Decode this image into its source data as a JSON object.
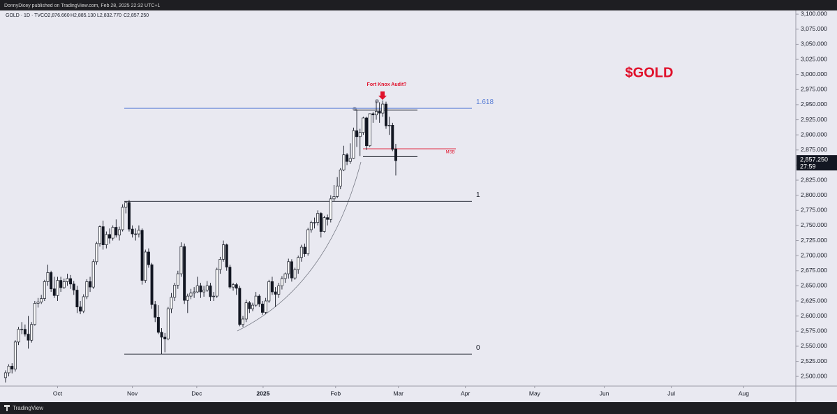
{
  "header": {
    "publisher": "DonnyDicey published on TradingView.com, Feb 28, 2025 22:32 UTC+1",
    "symbol": "GOLD · 1D · TVC",
    "open": "O2,876.660",
    "high": "H2,885.130",
    "low": "L2,832.770",
    "close": "C2,857.250"
  },
  "footer": {
    "brand": "TradingView"
  },
  "chart_data": {
    "type": "candlestick",
    "title": "$GOLD",
    "annotation": "Fort Knox Audit?",
    "up_color": "#ffffff",
    "down_color": "#131722",
    "ylim": [
      2484,
      3106
    ],
    "xlim": [
      -1.7,
      243
    ],
    "yticks": [
      {
        "value": 2500,
        "label": "2,500.000"
      },
      {
        "value": 2525,
        "label": "2,525.000"
      },
      {
        "value": 2550,
        "label": "2,550.000"
      },
      {
        "value": 2575,
        "label": "2,575.000"
      },
      {
        "value": 2600,
        "label": "2,600.000"
      },
      {
        "value": 2625,
        "label": "2,625.000"
      },
      {
        "value": 2650,
        "label": "2,650.000"
      },
      {
        "value": 2675,
        "label": "2,675.000"
      },
      {
        "value": 2700,
        "label": "2,700.000"
      },
      {
        "value": 2725,
        "label": "2,725.000"
      },
      {
        "value": 2750,
        "label": "2,750.000"
      },
      {
        "value": 2775,
        "label": "2,775.000"
      },
      {
        "value": 2800,
        "label": "2,800.000"
      },
      {
        "value": 2825,
        "label": "2,825.000"
      },
      {
        "value": 2850,
        "label": "2,850.000"
      },
      {
        "value": 2875,
        "label": "2,875.000"
      },
      {
        "value": 2900,
        "label": "2,900.000"
      },
      {
        "value": 2925,
        "label": "2,925.000"
      },
      {
        "value": 2950,
        "label": "2,950.000"
      },
      {
        "value": 2975,
        "label": "2,975.000"
      },
      {
        "value": 3000,
        "label": "3,000.000"
      },
      {
        "value": 3025,
        "label": "3,025.000"
      },
      {
        "value": 3050,
        "label": "3,050.000"
      },
      {
        "value": 3075,
        "label": "3,075.000"
      },
      {
        "value": 3100,
        "label": "3,100.000"
      }
    ],
    "xticks": [
      {
        "value": 16,
        "label": "Oct"
      },
      {
        "value": 39,
        "label": "Nov"
      },
      {
        "value": 58.8,
        "label": "Dec"
      },
      {
        "value": 79.2,
        "label": "2025"
      },
      {
        "value": 101.5,
        "label": "Feb"
      },
      {
        "value": 120.8,
        "label": "Mar"
      },
      {
        "value": 141.4,
        "label": "Apr"
      },
      {
        "value": 162.7,
        "label": "May"
      },
      {
        "value": 184.1,
        "label": "Jun"
      },
      {
        "value": 204.7,
        "label": "Jul"
      },
      {
        "value": 227,
        "label": "Aug"
      }
    ],
    "last_price": {
      "value": 2857.25,
      "label": "2,857.250"
    },
    "countdown": "27:59",
    "levels": [
      {
        "label": "1.618",
        "value": 2944,
        "color": "#5b7fd6"
      },
      {
        "label": "1",
        "value": 2790,
        "color": "#131722"
      },
      {
        "label": "0",
        "value": 2537,
        "color": "#131722"
      }
    ],
    "lines": [
      {
        "value": 2941,
        "color": "#131722"
      },
      {
        "value": 2864,
        "color": "#131722"
      },
      {
        "value": 2877,
        "color": "#e0112b",
        "label": "MSB"
      }
    ],
    "ohlc": [
      [
        2498,
        2510,
        2490,
        2506
      ],
      [
        2506,
        2520,
        2500,
        2517
      ],
      [
        2517,
        2522,
        2505,
        2512
      ],
      [
        2512,
        2560,
        2508,
        2557
      ],
      [
        2557,
        2582,
        2552,
        2578
      ],
      [
        2578,
        2590,
        2570,
        2578
      ],
      [
        2578,
        2586,
        2566,
        2570
      ],
      [
        2570,
        2600,
        2546,
        2560
      ],
      [
        2560,
        2590,
        2556,
        2586
      ],
      [
        2586,
        2625,
        2584,
        2621
      ],
      [
        2621,
        2630,
        2614,
        2623
      ],
      [
        2623,
        2635,
        2620,
        2629
      ],
      [
        2629,
        2660,
        2625,
        2657
      ],
      [
        2657,
        2685,
        2650,
        2672
      ],
      [
        2672,
        2675,
        2640,
        2645
      ],
      [
        2645,
        2665,
        2630,
        2634
      ],
      [
        2634,
        2665,
        2625,
        2659
      ],
      [
        2659,
        2665,
        2640,
        2647
      ],
      [
        2647,
        2662,
        2645,
        2657
      ],
      [
        2657,
        2670,
        2650,
        2662
      ],
      [
        2662,
        2668,
        2645,
        2653
      ],
      [
        2653,
        2658,
        2635,
        2643
      ],
      [
        2643,
        2650,
        2605,
        2615
      ],
      [
        2615,
        2625,
        2603,
        2608
      ],
      [
        2608,
        2636,
        2605,
        2632
      ],
      [
        2632,
        2661,
        2628,
        2657
      ],
      [
        2657,
        2665,
        2640,
        2648
      ],
      [
        2648,
        2694,
        2645,
        2690
      ],
      [
        2690,
        2723,
        2685,
        2720
      ],
      [
        2720,
        2750,
        2715,
        2748
      ],
      [
        2748,
        2758,
        2710,
        2718
      ],
      [
        2718,
        2740,
        2712,
        2735
      ],
      [
        2735,
        2745,
        2720,
        2729
      ],
      [
        2729,
        2750,
        2725,
        2747
      ],
      [
        2747,
        2760,
        2730,
        2734
      ],
      [
        2734,
        2748,
        2725,
        2743
      ],
      [
        2743,
        2785,
        2740,
        2780
      ],
      [
        2780,
        2790,
        2770,
        2788
      ],
      [
        2788,
        2792,
        2740,
        2744
      ],
      [
        2744,
        2750,
        2730,
        2736
      ],
      [
        2736,
        2745,
        2725,
        2736
      ],
      [
        2736,
        2750,
        2730,
        2742
      ],
      [
        2742,
        2745,
        2652,
        2659
      ],
      [
        2659,
        2710,
        2655,
        2706
      ],
      [
        2706,
        2712,
        2680,
        2685
      ],
      [
        2685,
        2688,
        2612,
        2619
      ],
      [
        2619,
        2625,
        2590,
        2598
      ],
      [
        2598,
        2618,
        2570,
        2573
      ],
      [
        2573,
        2580,
        2537,
        2565
      ],
      [
        2565,
        2572,
        2540,
        2562
      ],
      [
        2562,
        2615,
        2560,
        2612
      ],
      [
        2612,
        2638,
        2605,
        2631
      ],
      [
        2631,
        2655,
        2625,
        2651
      ],
      [
        2651,
        2675,
        2645,
        2670
      ],
      [
        2670,
        2722,
        2665,
        2715
      ],
      [
        2715,
        2720,
        2620,
        2626
      ],
      [
        2626,
        2637,
        2605,
        2633
      ],
      [
        2633,
        2645,
        2628,
        2638
      ],
      [
        2638,
        2648,
        2630,
        2640
      ],
      [
        2640,
        2665,
        2638,
        2650
      ],
      [
        2650,
        2655,
        2630,
        2640
      ],
      [
        2640,
        2650,
        2632,
        2643
      ],
      [
        2643,
        2658,
        2640,
        2650
      ],
      [
        2650,
        2655,
        2625,
        2632
      ],
      [
        2632,
        2640,
        2625,
        2633
      ],
      [
        2633,
        2680,
        2630,
        2677
      ],
      [
        2677,
        2698,
        2670,
        2694
      ],
      [
        2694,
        2725,
        2690,
        2718
      ],
      [
        2718,
        2720,
        2675,
        2681
      ],
      [
        2681,
        2685,
        2645,
        2648
      ],
      [
        2648,
        2655,
        2642,
        2652
      ],
      [
        2652,
        2655,
        2635,
        2646
      ],
      [
        2646,
        2650,
        2583,
        2586
      ],
      [
        2586,
        2600,
        2582,
        2595
      ],
      [
        2595,
        2627,
        2590,
        2622
      ],
      [
        2622,
        2625,
        2605,
        2612
      ],
      [
        2612,
        2622,
        2608,
        2618
      ],
      [
        2618,
        2640,
        2615,
        2633
      ],
      [
        2633,
        2636,
        2615,
        2620
      ],
      [
        2620,
        2625,
        2602,
        2606
      ],
      [
        2606,
        2630,
        2603,
        2625
      ],
      [
        2625,
        2660,
        2622,
        2657
      ],
      [
        2657,
        2665,
        2635,
        2640
      ],
      [
        2640,
        2648,
        2615,
        2636
      ],
      [
        2636,
        2655,
        2630,
        2650
      ],
      [
        2650,
        2666,
        2644,
        2662
      ],
      [
        2662,
        2672,
        2655,
        2670
      ],
      [
        2670,
        2695,
        2662,
        2690
      ],
      [
        2690,
        2694,
        2657,
        2663
      ],
      [
        2663,
        2680,
        2660,
        2677
      ],
      [
        2677,
        2700,
        2670,
        2697
      ],
      [
        2697,
        2718,
        2690,
        2714
      ],
      [
        2714,
        2720,
        2698,
        2703
      ],
      [
        2703,
        2746,
        2700,
        2743
      ],
      [
        2743,
        2758,
        2738,
        2755
      ],
      [
        2755,
        2763,
        2745,
        2755
      ],
      [
        2755,
        2775,
        2750,
        2770
      ],
      [
        2770,
        2772,
        2730,
        2740
      ],
      [
        2740,
        2766,
        2738,
        2763
      ],
      [
        2763,
        2768,
        2750,
        2760
      ],
      [
        2760,
        2800,
        2755,
        2794
      ],
      [
        2794,
        2817,
        2790,
        2798
      ],
      [
        2798,
        2830,
        2795,
        2815
      ],
      [
        2815,
        2845,
        2810,
        2842
      ],
      [
        2842,
        2882,
        2840,
        2867
      ],
      [
        2867,
        2870,
        2850,
        2856
      ],
      [
        2856,
        2886,
        2852,
        2861
      ],
      [
        2861,
        2912,
        2860,
        2907
      ],
      [
        2907,
        2942,
        2880,
        2897
      ],
      [
        2897,
        2910,
        2865,
        2904
      ],
      [
        2904,
        2930,
        2900,
        2928
      ],
      [
        2928,
        2930,
        2875,
        2882
      ],
      [
        2882,
        2935,
        2880,
        2935
      ],
      [
        2935,
        2938,
        2920,
        2933
      ],
      [
        2933,
        2955,
        2925,
        2939
      ],
      [
        2939,
        2954,
        2920,
        2936
      ],
      [
        2936,
        2957,
        2930,
        2951
      ],
      [
        2951,
        2955,
        2910,
        2915
      ],
      [
        2915,
        2930,
        2900,
        2916
      ],
      [
        2916,
        2920,
        2873,
        2876
      ],
      [
        2876.66,
        2885.13,
        2832.77,
        2857.25
      ]
    ]
  }
}
